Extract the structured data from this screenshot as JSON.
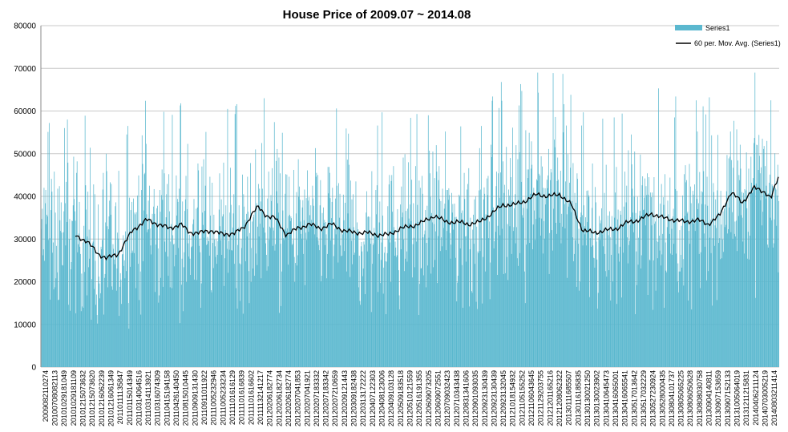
{
  "chart_data": {
    "type": "bar",
    "title": "House Price of 2009.07 ~ 2014.08",
    "xlabel": "",
    "ylabel": "",
    "ylim": [
      0,
      80000
    ],
    "yticks": [
      "0",
      "10000",
      "20000",
      "30000",
      "40000",
      "50000",
      "60000",
      "70000",
      "80000"
    ],
    "grid": true,
    "legend_position": "top-right",
    "colors": {
      "bars": "#5bb8cf",
      "moving_average": "#000000",
      "grid": "#c8c8c8"
    },
    "x_tick_labels": [
      "2009082110274",
      "20100708082113",
      "20101029181049",
      "20101029181109",
      "20101215073632",
      "20101215073620",
      "20101216062239",
      "20101216061349",
      "20110111135847",
      "20110115014349",
      "20110314064516",
      "20110314113921",
      "20110316074309",
      "20110415194158",
      "20110426140450",
      "20110815010445",
      "20110909131430",
      "20110911011922",
      "20111005232946",
      "20111005233234",
      "20111101616129",
      "20111101616839",
      "20111101616602",
      "20111132141217",
      "20120206182774",
      "20120206182734",
      "20120206182774",
      "20120207041853",
      "20120207041921",
      "20120207183332",
      "20120207183342",
      "20120207210659",
      "20120209121443",
      "20120309182438",
      "20120313172222",
      "20120407122303",
      "20120408123006",
      "20120409103128",
      "20120509183518",
      "20120510121559",
      "20120516191355",
      "20120609073205",
      "20120609072551",
      "20120709032423",
      "20120710343438",
      "20120831341606",
      "20120901093035",
      "20120923130439",
      "20120923130439",
      "20120923132045",
      "20121018154932",
      "20121105155252",
      "20121106043645",
      "20121129203755",
      "20121201165216",
      "20121208062322",
      "20130111685507",
      "20130116185835",
      "20130130021250",
      "20130130023902",
      "20130410645473",
      "20130416065001",
      "20130416065541",
      "20130517013642",
      "20130517032229",
      "20130527230924",
      "20130528000435",
      "20130804101737",
      "20130805065225",
      "20130806050628",
      "20130808030758",
      "20130904140811",
      "20130907153659",
      "20130907152133",
      "20131005064019",
      "20131211215831",
      "20140406211124",
      "20140703005219",
      "20140803211414"
    ],
    "series": [
      {
        "name": "Series1",
        "kind": "bar",
        "values": []
      },
      {
        "name": "60 per. Mov. Avg. (Series1)",
        "kind": "line",
        "start_index": 60,
        "values": []
      }
    ],
    "series1_profile": {
      "n_points": 1295,
      "typical_min": 15000,
      "typical_max": 69000,
      "mean_range": [
        25000,
        45000
      ]
    },
    "moving_average_points": [
      [
        60,
        30800
      ],
      [
        80,
        29500
      ],
      [
        100,
        26500
      ],
      [
        115,
        25500
      ],
      [
        135,
        26500
      ],
      [
        160,
        32000
      ],
      [
        185,
        34500
      ],
      [
        205,
        33500
      ],
      [
        225,
        32500
      ],
      [
        245,
        33500
      ],
      [
        260,
        31500
      ],
      [
        280,
        31500
      ],
      [
        300,
        32000
      ],
      [
        320,
        31000
      ],
      [
        340,
        31500
      ],
      [
        355,
        32500
      ],
      [
        370,
        36000
      ],
      [
        380,
        37500
      ],
      [
        395,
        35500
      ],
      [
        410,
        35000
      ],
      [
        430,
        31000
      ],
      [
        450,
        32500
      ],
      [
        470,
        33500
      ],
      [
        490,
        32500
      ],
      [
        510,
        33500
      ],
      [
        530,
        32000
      ],
      [
        550,
        31500
      ],
      [
        570,
        31500
      ],
      [
        590,
        31000
      ],
      [
        610,
        31000
      ],
      [
        630,
        32500
      ],
      [
        650,
        33000
      ],
      [
        670,
        34000
      ],
      [
        690,
        35500
      ],
      [
        710,
        34000
      ],
      [
        730,
        34000
      ],
      [
        750,
        33500
      ],
      [
        770,
        34000
      ],
      [
        790,
        36000
      ],
      [
        810,
        38000
      ],
      [
        830,
        38000
      ],
      [
        850,
        39000
      ],
      [
        870,
        40500
      ],
      [
        890,
        40000
      ],
      [
        910,
        40500
      ],
      [
        930,
        38000
      ],
      [
        950,
        32000
      ],
      [
        970,
        31500
      ],
      [
        990,
        32000
      ],
      [
        1010,
        32500
      ],
      [
        1030,
        34000
      ],
      [
        1050,
        34500
      ],
      [
        1070,
        36000
      ],
      [
        1090,
        35000
      ],
      [
        1110,
        34500
      ],
      [
        1130,
        34000
      ],
      [
        1150,
        34500
      ],
      [
        1170,
        33500
      ],
      [
        1190,
        35500
      ],
      [
        1210,
        41000
      ],
      [
        1230,
        38500
      ],
      [
        1250,
        42000
      ],
      [
        1270,
        41000
      ],
      [
        1280,
        39500
      ],
      [
        1295,
        45200
      ]
    ]
  },
  "legend": [
    {
      "label": "Series1",
      "color": "#5bb8cf",
      "kind": "bar"
    },
    {
      "label": "60 per. Mov. Avg. (Series1)",
      "color": "#000000",
      "kind": "line"
    }
  ]
}
